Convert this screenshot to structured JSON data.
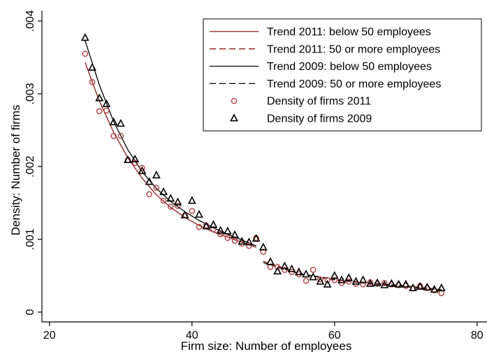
{
  "chart_data": {
    "type": "scatter",
    "xlabel": "Firm size: Number of employees",
    "ylabel": "Density: Number of firms",
    "xlim": [
      19,
      80
    ],
    "ylim": [
      -5e-05,
      0.00405
    ],
    "xticks": [
      20,
      40,
      60,
      80
    ],
    "xtick_labels": [
      "20",
      "40",
      "60",
      "80"
    ],
    "yticks": [
      0,
      0.001,
      0.002,
      0.003,
      0.004
    ],
    "ytick_labels": [
      "0",
      ".001",
      ".002",
      ".003",
      ".004"
    ],
    "grid": false,
    "legend_position": "top-right",
    "colors": {
      "trend2011": "#8b1a1a",
      "trend2009": "#000000",
      "points2011": "#b04040",
      "points2009": "#000000"
    },
    "legend": [
      {
        "label": "Trend 2011: below 50 employees",
        "style": "solid",
        "color": "#8b1a1a"
      },
      {
        "label": "Trend 2011: 50 or more employees",
        "style": "dashed",
        "color": "#8b1a1a"
      },
      {
        "label": "Trend 2009: below 50 employees",
        "style": "solid",
        "color": "#000000"
      },
      {
        "label": "Trend 2009: 50 or more employees",
        "style": "dashed",
        "color": "#000000"
      },
      {
        "label": "Density of firms 2011",
        "marker": "circle",
        "color": "#b04040"
      },
      {
        "label": "Density of firms 2009",
        "marker": "triangle",
        "color": "#000000"
      }
    ],
    "series": [
      {
        "name": "Density of firms 2011",
        "marker": "circle",
        "x": [
          25,
          26,
          27,
          28,
          29,
          30,
          31,
          32,
          33,
          34,
          35,
          36,
          37,
          38,
          39,
          40,
          41,
          42,
          43,
          44,
          45,
          46,
          47,
          48,
          49,
          50,
          51,
          52,
          53,
          54,
          55,
          56,
          57,
          58,
          59,
          60,
          61,
          62,
          63,
          64,
          65,
          66,
          67,
          68,
          69,
          70,
          71,
          72,
          73,
          74,
          75
        ],
        "y": [
          0.00355,
          0.00316,
          0.00276,
          0.00277,
          0.00242,
          0.00242,
          0.00209,
          0.00205,
          0.00198,
          0.00162,
          0.00171,
          0.00153,
          0.00145,
          0.00146,
          0.00133,
          0.00139,
          0.00117,
          0.00119,
          0.00114,
          0.00107,
          0.00102,
          0.00098,
          0.00094,
          0.00091,
          0.00102,
          0.00083,
          0.00062,
          0.00062,
          0.00058,
          0.00055,
          0.00052,
          0.00043,
          0.00058,
          0.00045,
          0.00044,
          0.00044,
          0.0004,
          0.00042,
          0.00039,
          0.00038,
          0.00041,
          0.00039,
          0.0004,
          0.00038,
          0.00037,
          0.00036,
          0.00033,
          0.00036,
          0.00033,
          0.0003,
          0.00026
        ]
      },
      {
        "name": "Density of firms 2009",
        "marker": "triangle",
        "x": [
          25,
          26,
          27,
          28,
          29,
          30,
          31,
          32,
          33,
          34,
          35,
          36,
          37,
          38,
          39,
          40,
          41,
          42,
          43,
          44,
          45,
          46,
          47,
          48,
          49,
          50,
          51,
          52,
          53,
          54,
          55,
          56,
          57,
          58,
          59,
          60,
          61,
          62,
          63,
          64,
          65,
          66,
          67,
          68,
          69,
          70,
          71,
          72,
          73,
          74,
          75
        ],
        "y": [
          0.00377,
          0.00336,
          0.00294,
          0.00286,
          0.00261,
          0.00259,
          0.00209,
          0.0021,
          0.00194,
          0.00179,
          0.00188,
          0.00165,
          0.00156,
          0.00151,
          0.00133,
          0.00153,
          0.00134,
          0.00118,
          0.0012,
          0.00112,
          0.00111,
          0.00106,
          0.00097,
          0.00096,
          0.00101,
          0.00089,
          0.00069,
          0.00056,
          0.00063,
          0.00059,
          0.00055,
          0.00052,
          0.00048,
          0.00042,
          0.00038,
          0.0005,
          0.00044,
          0.00047,
          0.00042,
          0.00044,
          0.00039,
          0.0004,
          0.00037,
          0.00039,
          0.00038,
          0.00038,
          0.00033,
          0.00035,
          0.00034,
          0.00031,
          0.00033
        ]
      },
      {
        "name": "Trend 2011: below 50 employees",
        "line": "solid",
        "x": [
          25,
          27,
          29,
          31,
          33,
          35,
          37,
          39,
          41,
          43,
          45,
          47,
          49
        ],
        "y": [
          0.00343,
          0.0029,
          0.00247,
          0.00212,
          0.00184,
          0.00161,
          0.00144,
          0.0013,
          0.00119,
          0.0011,
          0.00103,
          0.00096,
          0.00089
        ]
      },
      {
        "name": "Trend 2011: 50 or more employees",
        "line": "dashed",
        "x": [
          50,
          55,
          60,
          65,
          70,
          75
        ],
        "y": [
          0.0007,
          0.00053,
          0.00044,
          0.00039,
          0.00035,
          0.0003
        ]
      },
      {
        "name": "Trend 2009: below 50 employees",
        "line": "solid",
        "x": [
          25,
          27,
          29,
          31,
          33,
          35,
          37,
          39,
          41,
          43,
          45,
          47,
          49
        ],
        "y": [
          0.00373,
          0.00312,
          0.00262,
          0.00223,
          0.00193,
          0.0017,
          0.00152,
          0.00138,
          0.00126,
          0.00116,
          0.00107,
          0.00099,
          0.00091
        ]
      },
      {
        "name": "Trend 2009: 50 or more employees",
        "line": "dashed",
        "x": [
          50,
          55,
          60,
          65,
          70,
          75
        ],
        "y": [
          0.00068,
          0.00053,
          0.00045,
          0.0004,
          0.00036,
          0.00031
        ]
      }
    ]
  }
}
